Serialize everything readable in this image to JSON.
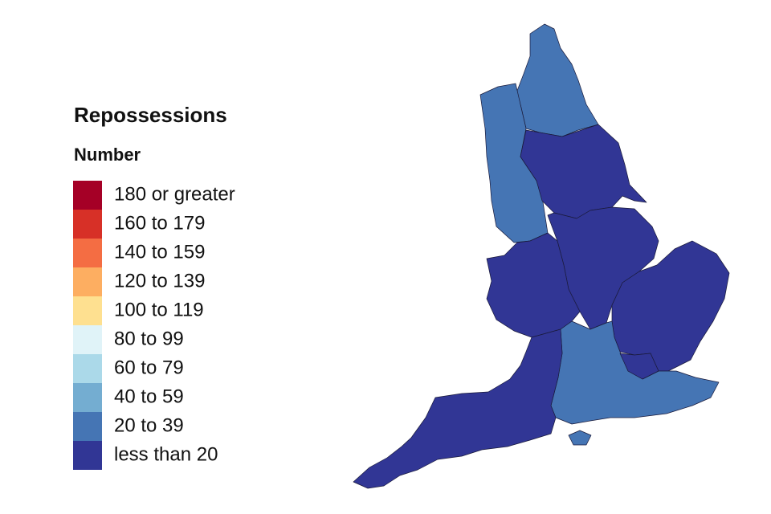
{
  "legend": {
    "title": "Repossessions",
    "subtitle": "Number",
    "items": [
      {
        "label": "180 or greater",
        "color": "#a50026"
      },
      {
        "label": "160 to 179",
        "color": "#d73027"
      },
      {
        "label": "140 to 159",
        "color": "#f46d43"
      },
      {
        "label": "120 to 139",
        "color": "#fdae61"
      },
      {
        "label": "100 to 119",
        "color": "#fee090"
      },
      {
        "label": "80 to 99",
        "color": "#e0f3f8"
      },
      {
        "label": "60 to 79",
        "color": "#abd9e9"
      },
      {
        "label": "40 to 59",
        "color": "#74add1"
      },
      {
        "label": "20 to 39",
        "color": "#4575b4"
      },
      {
        "label": "less than 20",
        "color": "#313695"
      }
    ]
  },
  "map": {
    "region_colors": [
      "#4575b4",
      "#4575b4",
      "#313695",
      "#313695",
      "#313695",
      "#313695",
      "#4575b4",
      "#313695",
      "#313695",
      "#4575b4"
    ]
  }
}
